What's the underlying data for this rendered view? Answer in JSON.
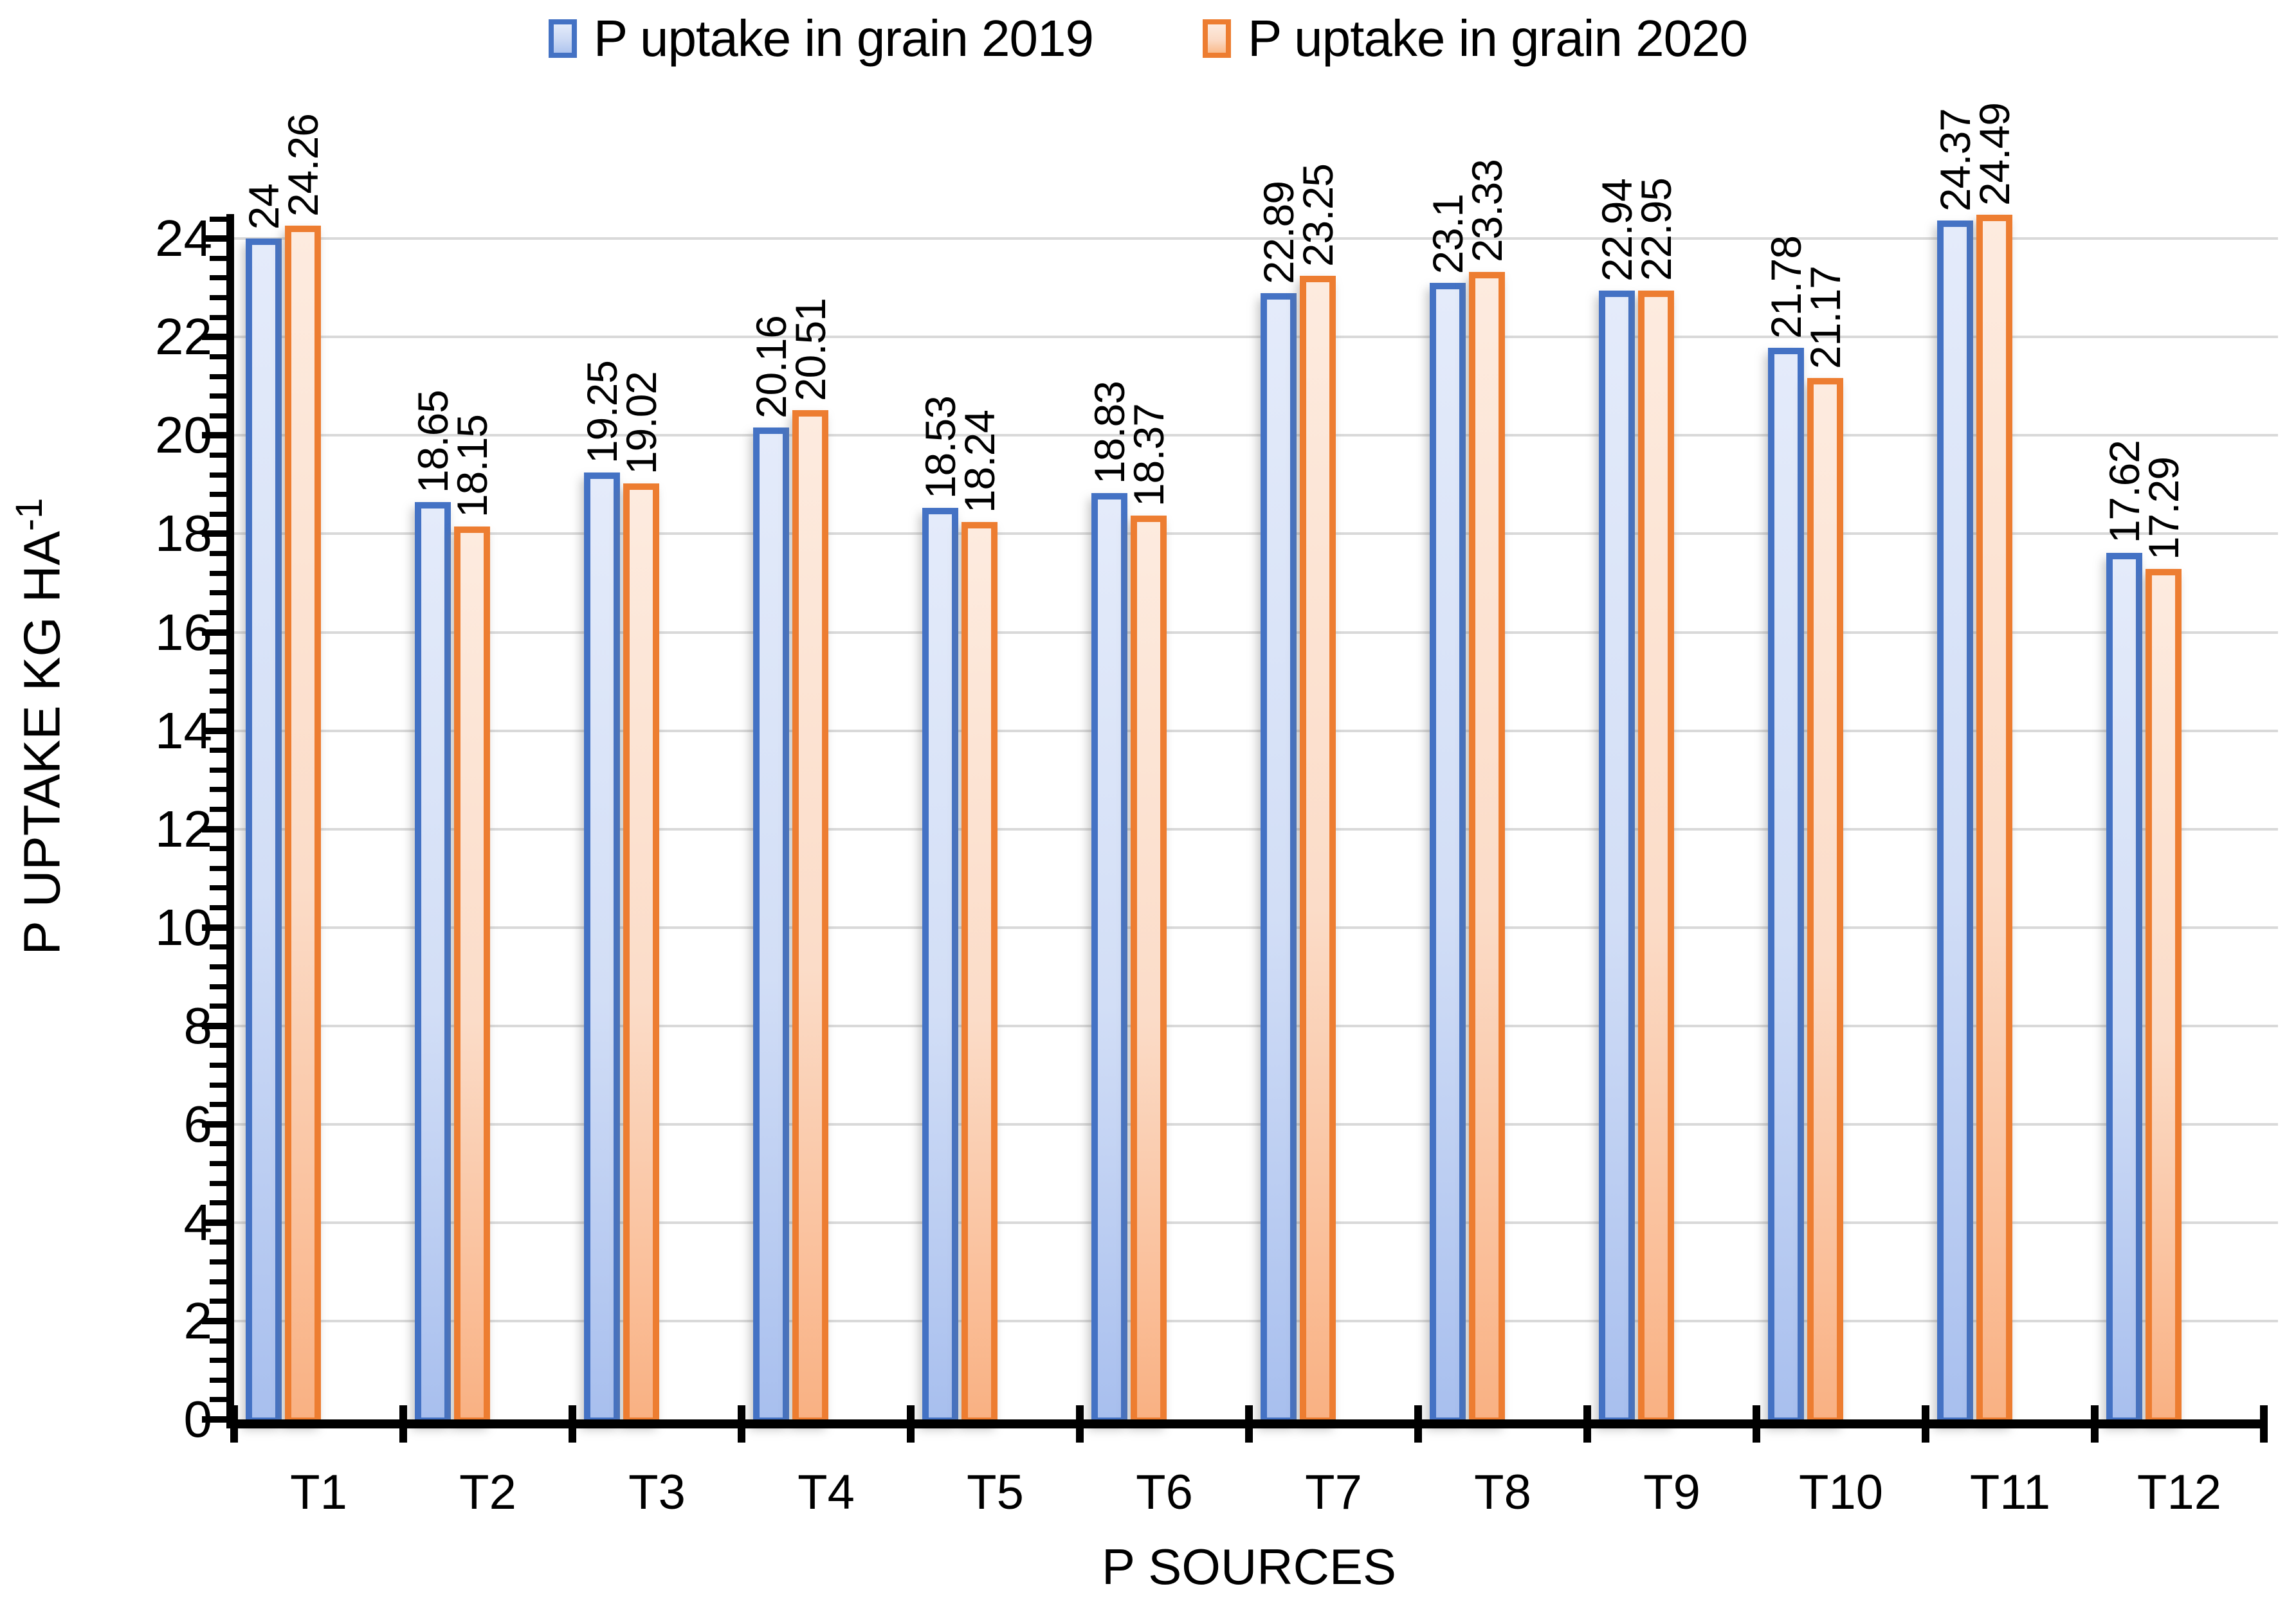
{
  "chart_data": {
    "type": "bar",
    "xlabel": "P SOURCES",
    "ylabel_main": "P UPTAKE KG HA",
    "ylabel_superscript": "-1",
    "legend_position": "top",
    "grid": {
      "show": true,
      "color": "#D9D9D9"
    },
    "background": "#FFFFFF",
    "categories": [
      "T1",
      "T2",
      "T3",
      "T4",
      "T5",
      "T6",
      "T7",
      "T8",
      "T9",
      "T10",
      "T11",
      "T12"
    ],
    "series": [
      {
        "name": "P uptake in grain 2019",
        "color": "#4472C4",
        "values": [
          24,
          18.65,
          19.25,
          20.16,
          18.53,
          18.83,
          22.89,
          23.1,
          22.94,
          21.78,
          24.37,
          17.62
        ],
        "labels": [
          "24",
          "18.65",
          "19.25",
          "20.16",
          "18.53",
          "18.83",
          "22.89",
          "23.1",
          "22.94",
          "21.78",
          "24.37",
          "17.62"
        ]
      },
      {
        "name": "P uptake in grain 2020",
        "color": "#ED7D31",
        "values": [
          24.26,
          18.15,
          19.02,
          20.51,
          18.24,
          18.37,
          23.25,
          23.33,
          22.95,
          21.17,
          24.49,
          17.29
        ],
        "labels": [
          "24.26",
          "18.15",
          "19.02",
          "20.51",
          "18.24",
          "18.37",
          "23.25",
          "23.33",
          "22.95",
          "21.17",
          "24.49",
          "17.29"
        ]
      }
    ],
    "y_axis": {
      "min": 0,
      "max": 24,
      "axis_top_value": 24.5,
      "major_unit": 2,
      "minor_unit": 0.4,
      "tick_labels": [
        "0",
        "2",
        "4",
        "6",
        "8",
        "10",
        "12",
        "14",
        "16",
        "18",
        "20",
        "22",
        "24"
      ]
    },
    "data_label_rotation_degrees": 270
  }
}
